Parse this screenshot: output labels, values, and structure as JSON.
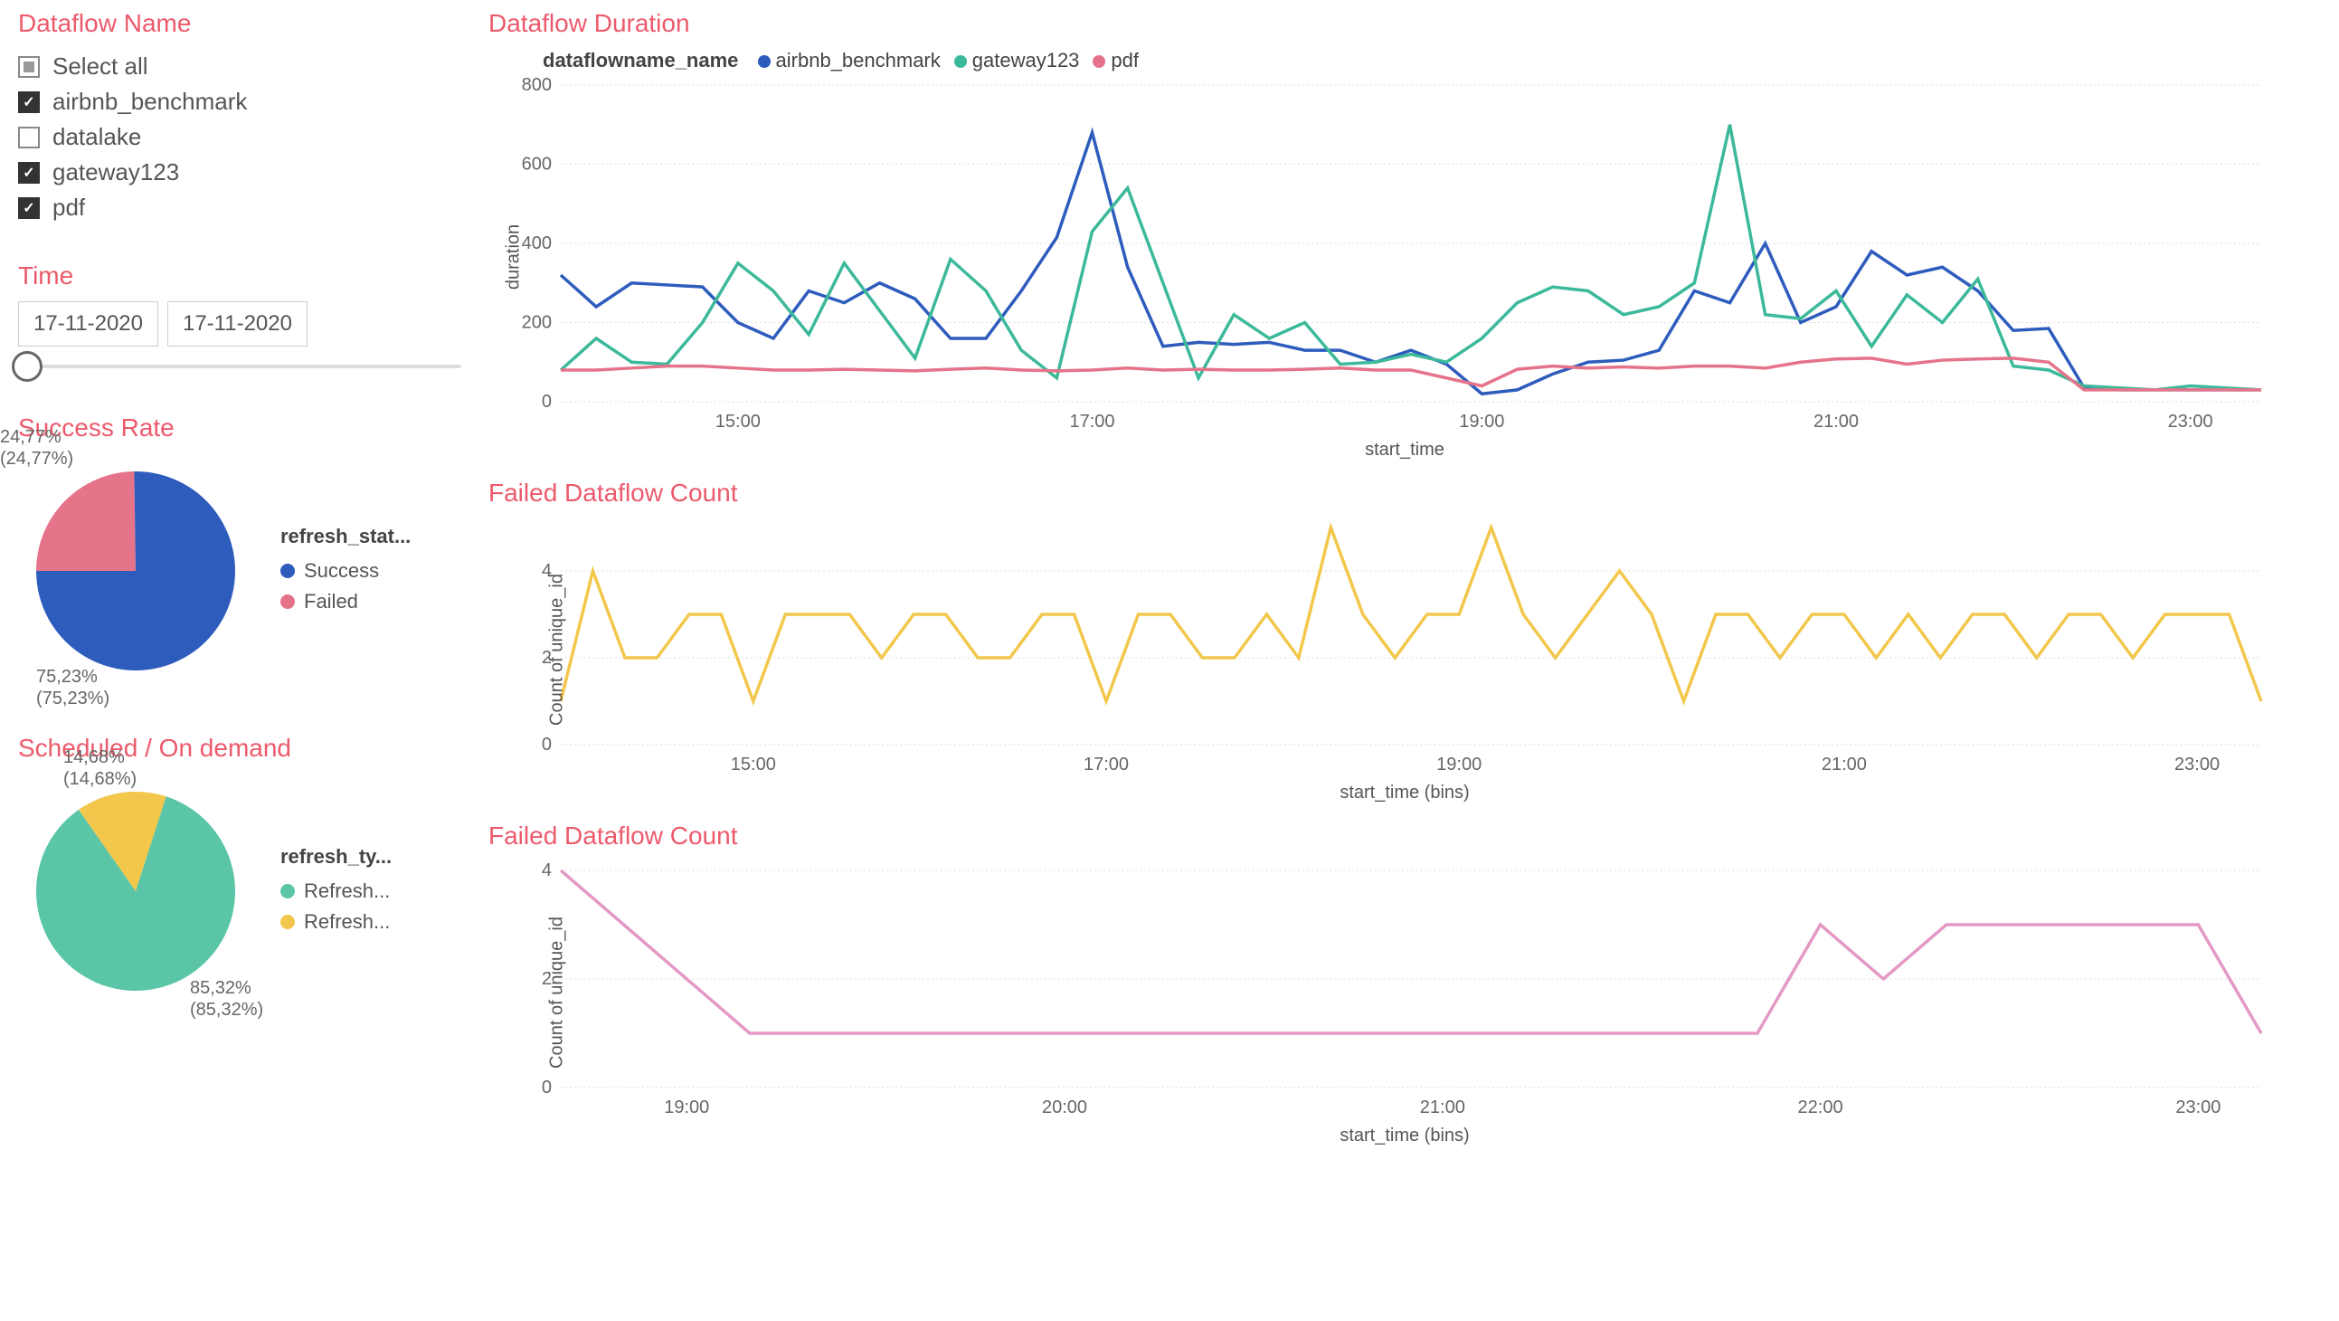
{
  "sidebar": {
    "dataflow_title": "Dataflow Name",
    "select_all": "Select all",
    "items": [
      {
        "label": "airbnb_benchmark",
        "checked": true
      },
      {
        "label": "datalake",
        "checked": false
      },
      {
        "label": "gateway123",
        "checked": true
      },
      {
        "label": "pdf",
        "checked": true
      }
    ],
    "time_title": "Time",
    "date_from": "17-11-2020",
    "date_to": "17-11-2020"
  },
  "success_rate": {
    "title": "Success Rate",
    "legend_title": "refresh_stat...",
    "slices": [
      {
        "label": "Success",
        "pct": 75.23,
        "pct_label": "75,23%",
        "pct_sub": "(75,23%)",
        "color": "#2e5cbd"
      },
      {
        "label": "Failed",
        "pct": 24.77,
        "pct_label": "24,77%",
        "pct_sub": "(24,77%)",
        "color": "#e5738a"
      }
    ]
  },
  "scheduled": {
    "title": "Scheduled / On demand",
    "legend_title": "refresh_ty...",
    "slices": [
      {
        "label": "Refresh...",
        "pct": 85.32,
        "pct_label": "85,32%",
        "pct_sub": "(85,32%)",
        "color": "#5bc5a7"
      },
      {
        "label": "Refresh...",
        "pct": 14.68,
        "pct_label": "14,68%",
        "pct_sub": "(14,68%)",
        "color": "#f2c74b"
      }
    ]
  },
  "duration_chart": {
    "title": "Dataflow Duration",
    "legend_label": "dataflowname_name",
    "y_label": "duration",
    "x_label": "start_time",
    "ylim": [
      0,
      800
    ],
    "ytick_step": 200,
    "x_ticks": [
      "15:00",
      "17:00",
      "19:00",
      "21:00",
      "23:00"
    ],
    "series": [
      {
        "name": "airbnb_benchmark",
        "color": "#2e5cbd",
        "x": [
          0,
          1,
          2,
          3,
          4,
          5,
          6,
          7,
          8,
          9,
          10,
          11,
          12,
          13,
          14,
          15,
          16,
          17,
          18,
          19,
          20,
          21,
          22,
          23,
          24,
          25,
          26,
          27,
          28,
          29,
          30,
          31,
          32,
          33,
          34,
          35,
          36,
          37,
          38,
          39,
          40,
          41,
          42,
          43,
          44,
          45,
          46,
          47,
          48
        ],
        "y": [
          320,
          240,
          300,
          295,
          290,
          200,
          160,
          280,
          250,
          300,
          260,
          160,
          160,
          280,
          415,
          680,
          340,
          140,
          150,
          145,
          150,
          130,
          130,
          100,
          130,
          95,
          20,
          30,
          70,
          100,
          105,
          130,
          280,
          250,
          400,
          200,
          240,
          380,
          320,
          340,
          280,
          180,
          185,
          35,
          30,
          30,
          30,
          30,
          30
        ]
      },
      {
        "name": "gateway123",
        "color": "#3cb99a",
        "x": [
          0,
          1,
          2,
          3,
          4,
          5,
          6,
          7,
          8,
          9,
          10,
          11,
          12,
          13,
          14,
          15,
          16,
          17,
          18,
          19,
          20,
          21,
          22,
          23,
          24,
          25,
          26,
          27,
          28,
          29,
          30,
          31,
          32,
          33,
          34,
          35,
          36,
          37,
          38,
          39,
          40,
          41,
          42,
          43,
          44,
          45,
          46,
          47,
          48
        ],
        "y": [
          80,
          160,
          100,
          95,
          200,
          350,
          280,
          170,
          350,
          230,
          110,
          360,
          280,
          130,
          60,
          430,
          540,
          300,
          60,
          220,
          160,
          200,
          95,
          100,
          120,
          100,
          160,
          250,
          290,
          280,
          220,
          240,
          300,
          700,
          220,
          210,
          280,
          140,
          270,
          200,
          310,
          90,
          80,
          40,
          35,
          30,
          40,
          35,
          30
        ]
      },
      {
        "name": "pdf",
        "color": "#e5738a",
        "x": [
          0,
          1,
          2,
          3,
          4,
          5,
          6,
          7,
          8,
          9,
          10,
          11,
          12,
          13,
          14,
          15,
          16,
          17,
          18,
          19,
          20,
          21,
          22,
          23,
          24,
          25,
          26,
          27,
          28,
          29,
          30,
          31,
          32,
          33,
          34,
          35,
          36,
          37,
          38,
          39,
          40,
          41,
          42,
          43,
          44,
          45,
          46,
          47,
          48
        ],
        "y": [
          80,
          80,
          85,
          90,
          90,
          85,
          80,
          80,
          82,
          80,
          78,
          82,
          85,
          80,
          78,
          80,
          85,
          80,
          82,
          80,
          80,
          82,
          85,
          80,
          80,
          60,
          40,
          82,
          90,
          85,
          88,
          85,
          90,
          90,
          85,
          100,
          108,
          110,
          95,
          105,
          108,
          110,
          100,
          30,
          30,
          30,
          30,
          30,
          30
        ]
      }
    ]
  },
  "failed_count_1": {
    "title": "Failed Dataflow Count",
    "y_label": "Count of unique_id",
    "x_label": "start_time (bins)",
    "ylim": [
      0,
      5
    ],
    "y_ticks": [
      0,
      2,
      4
    ],
    "x_ticks": [
      "15:00",
      "17:00",
      "19:00",
      "21:00",
      "23:00"
    ],
    "color": "#f2c74b",
    "series": {
      "x": [
        0,
        1,
        2,
        3,
        4,
        5,
        6,
        7,
        8,
        9,
        10,
        11,
        12,
        13,
        14,
        15,
        16,
        17,
        18,
        19,
        20,
        21,
        22,
        23,
        24,
        25,
        26,
        27,
        28,
        29,
        30,
        31,
        32,
        33,
        34,
        35,
        36,
        37,
        38,
        39,
        40,
        41,
        42,
        43,
        44,
        45,
        46,
        47,
        48,
        49,
        50,
        51,
        52,
        53
      ],
      "y": [
        1,
        4,
        2,
        2,
        3,
        3,
        1,
        3,
        3,
        3,
        2,
        3,
        3,
        2,
        2,
        3,
        3,
        1,
        3,
        3,
        2,
        2,
        3,
        2,
        5,
        3,
        2,
        3,
        3,
        5,
        3,
        2,
        3,
        4,
        3,
        1,
        3,
        3,
        2,
        3,
        3,
        2,
        3,
        2,
        3,
        3,
        2,
        3,
        3,
        2,
        3,
        3,
        3,
        1
      ]
    }
  },
  "failed_count_2": {
    "title": "Failed Dataflow Count",
    "y_label": "Count of unique_id",
    "x_label": "start_time (bins)",
    "ylim": [
      0,
      4
    ],
    "y_ticks": [
      0,
      2,
      4
    ],
    "x_ticks": [
      "19:00",
      "20:00",
      "21:00",
      "22:00",
      "23:00"
    ],
    "color": "#e499c5",
    "series": {
      "x": [
        0,
        1,
        2,
        3,
        4,
        5,
        6,
        7,
        8,
        9,
        10,
        11,
        12,
        13,
        14,
        15,
        16,
        17,
        18,
        19,
        20,
        21,
        22,
        23,
        24,
        25,
        26,
        27
      ],
      "y": [
        4,
        3,
        2,
        1,
        1,
        1,
        1,
        1,
        1,
        1,
        1,
        1,
        1,
        1,
        1,
        1,
        1,
        1,
        1,
        1,
        3,
        2,
        3,
        3,
        3,
        3,
        3,
        1
      ]
    }
  },
  "colors": {
    "title": "#ec5a6c",
    "grid": "#ddd",
    "text": "#555"
  }
}
